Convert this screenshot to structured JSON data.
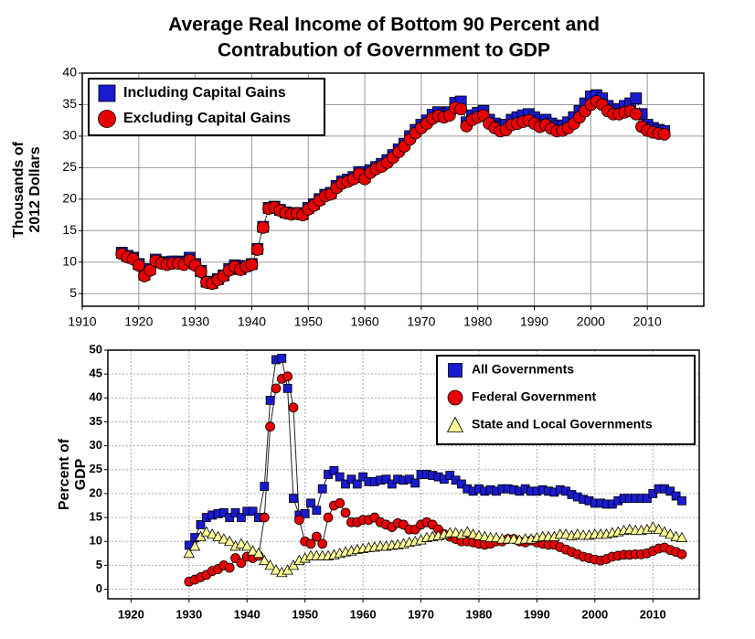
{
  "title": [
    "Average Real Income of Bottom 90 Percent and",
    "Contrabution of Government to GDP"
  ],
  "chart_data": [
    {
      "type": "scatter",
      "ylabel": [
        "Thousands of",
        "2012 Dollars"
      ],
      "legend": "upper left",
      "grid": true,
      "xlim": [
        1910,
        2020
      ],
      "xticks": [
        1910,
        1920,
        1930,
        1940,
        1950,
        1960,
        1970,
        1980,
        1990,
        2000,
        2010
      ],
      "ylim": [
        3,
        40
      ],
      "yticks": [
        5,
        10,
        15,
        20,
        25,
        30,
        35,
        40
      ],
      "x": [
        1917,
        1918,
        1919,
        1920,
        1921,
        1922,
        1923,
        1924,
        1925,
        1926,
        1927,
        1928,
        1929,
        1930,
        1931,
        1932,
        1933,
        1934,
        1935,
        1936,
        1937,
        1938,
        1939,
        1940,
        1941,
        1942,
        1943,
        1944,
        1945,
        1946,
        1947,
        1948,
        1949,
        1950,
        1951,
        1952,
        1953,
        1954,
        1955,
        1956,
        1957,
        1958,
        1959,
        1960,
        1961,
        1962,
        1963,
        1964,
        1965,
        1966,
        1967,
        1968,
        1969,
        1970,
        1971,
        1972,
        1973,
        1974,
        1975,
        1976,
        1977,
        1978,
        1979,
        1980,
        1981,
        1982,
        1983,
        1984,
        1985,
        1986,
        1987,
        1988,
        1989,
        1990,
        1991,
        1992,
        1993,
        1994,
        1995,
        1996,
        1997,
        1998,
        1999,
        2000,
        2001,
        2002,
        2003,
        2004,
        2005,
        2006,
        2007,
        2008,
        2009,
        2010,
        2011,
        2012,
        2013
      ],
      "series": [
        {
          "name": "Including Capital Gains",
          "color": "#1a1ad0",
          "marker": "square",
          "values": [
            11.5,
            11.0,
            10.7,
            9.7,
            8.0,
            8.9,
            10.4,
            10.0,
            9.9,
            10.1,
            10.1,
            10.0,
            10.7,
            9.7,
            8.6,
            6.9,
            6.7,
            7.3,
            7.9,
            8.9,
            9.5,
            8.9,
            9.4,
            9.7,
            12.1,
            15.6,
            18.6,
            18.8,
            18.3,
            17.9,
            17.7,
            17.8,
            17.6,
            18.6,
            19.2,
            20.0,
            20.7,
            21.0,
            22.1,
            22.8,
            23.1,
            23.5,
            24.3,
            23.5,
            24.6,
            25.1,
            25.6,
            26.2,
            27.0,
            27.9,
            28.8,
            30.0,
            31.0,
            31.8,
            32.5,
            33.4,
            33.8,
            33.5,
            33.8,
            35.3,
            35.5,
            32.2,
            33.3,
            33.7,
            34.0,
            32.6,
            32.0,
            31.5,
            31.8,
            32.6,
            33.0,
            33.3,
            33.5,
            33.0,
            32.5,
            32.6,
            32.0,
            31.6,
            31.7,
            32.2,
            33.0,
            34.0,
            35.2,
            36.3,
            36.5,
            36.0,
            34.8,
            34.2,
            34.3,
            34.8,
            35.2,
            36.0,
            33.5,
            31.8,
            31.3,
            31.0,
            30.8
          ]
        },
        {
          "name": "Excluding Capital Gains",
          "color": "#e80000",
          "marker": "circle",
          "values": [
            11.3,
            10.8,
            10.5,
            9.5,
            7.8,
            8.7,
            10.2,
            9.8,
            9.6,
            9.8,
            9.8,
            9.6,
            10.3,
            9.5,
            8.5,
            6.8,
            6.6,
            7.2,
            7.8,
            8.7,
            9.3,
            8.8,
            9.3,
            9.6,
            12.0,
            15.5,
            18.5,
            18.7,
            18.2,
            17.8,
            17.6,
            17.7,
            17.5,
            18.4,
            19.0,
            19.8,
            20.5,
            20.8,
            21.8,
            22.5,
            22.8,
            23.2,
            24.0,
            23.2,
            24.2,
            24.8,
            25.2,
            25.8,
            26.6,
            27.5,
            28.4,
            29.5,
            30.5,
            31.3,
            32.0,
            32.8,
            33.2,
            33.0,
            33.3,
            34.5,
            34.3,
            31.6,
            32.6,
            33.0,
            33.3,
            32.0,
            31.3,
            30.8,
            31.0,
            31.8,
            32.0,
            32.3,
            32.5,
            32.0,
            31.5,
            31.8,
            31.2,
            30.8,
            30.9,
            31.3,
            32.0,
            33.0,
            34.0,
            35.0,
            35.5,
            35.0,
            34.0,
            33.5,
            33.5,
            33.8,
            34.0,
            33.5,
            31.5,
            30.9,
            30.6,
            30.4,
            30.3
          ]
        }
      ]
    },
    {
      "type": "scatter",
      "ylabel": [
        "Percent of",
        "GDP"
      ],
      "legend": "upper right",
      "grid": true,
      "xlim": [
        1916,
        2018
      ],
      "xticks": [
        1920,
        1930,
        1940,
        1950,
        1960,
        1970,
        1980,
        1990,
        2000,
        2010
      ],
      "ylim": [
        -2,
        50
      ],
      "yticks": [
        0,
        5,
        10,
        15,
        20,
        25,
        30,
        35,
        40,
        45,
        50
      ],
      "x": [
        1930,
        1931,
        1932,
        1933,
        1934,
        1935,
        1936,
        1937,
        1938,
        1939,
        1940,
        1941,
        1942,
        1943,
        1944,
        1945,
        1946,
        1947,
        1948,
        1949,
        1950,
        1951,
        1952,
        1953,
        1954,
        1955,
        1956,
        1957,
        1958,
        1959,
        1960,
        1961,
        1962,
        1963,
        1964,
        1965,
        1966,
        1967,
        1968,
        1969,
        1970,
        1971,
        1972,
        1973,
        1974,
        1975,
        1976,
        1977,
        1978,
        1979,
        1980,
        1981,
        1982,
        1983,
        1984,
        1985,
        1986,
        1987,
        1988,
        1989,
        1990,
        1991,
        1992,
        1993,
        1994,
        1995,
        1996,
        1997,
        1998,
        1999,
        2000,
        2001,
        2002,
        2003,
        2004,
        2005,
        2006,
        2007,
        2008,
        2009,
        2010,
        2011,
        2012,
        2013,
        2014,
        2015
      ],
      "series": [
        {
          "name": "All Governments",
          "color": "#1a1ad0",
          "marker": "square",
          "values": [
            9.2,
            10.8,
            13.5,
            15.0,
            15.5,
            15.8,
            16.0,
            15.0,
            16.0,
            15.0,
            16.3,
            16.3,
            15.0,
            21.5,
            39.5,
            48.0,
            48.3,
            42.0,
            19.0,
            15.5,
            15.8,
            18.0,
            16.5,
            21.0,
            24.0,
            24.8,
            23.5,
            22.0,
            23.0,
            22.0,
            23.5,
            22.5,
            22.5,
            22.8,
            23.0,
            22.0,
            23.0,
            22.8,
            23.0,
            22.2,
            24.0,
            24.0,
            23.8,
            23.5,
            23.0,
            23.8,
            22.8,
            22.0,
            21.0,
            20.5,
            21.0,
            20.5,
            20.8,
            20.5,
            21.0,
            21.0,
            20.8,
            20.5,
            21.0,
            20.5,
            20.5,
            20.8,
            20.5,
            20.3,
            20.8,
            20.5,
            19.8,
            19.3,
            18.8,
            18.5,
            18.0,
            18.0,
            17.8,
            17.8,
            18.5,
            19.0,
            19.0,
            19.0,
            19.0,
            19.0,
            20.0,
            21.0,
            21.0,
            20.5,
            19.5,
            18.5
          ]
        },
        {
          "name": "Federal Government",
          "color": "#e80000",
          "marker": "circle",
          "values": [
            1.6,
            2.0,
            2.5,
            3.0,
            3.8,
            4.2,
            5.0,
            4.5,
            6.5,
            5.5,
            6.8,
            6.5,
            7.0,
            15.0,
            34.0,
            42.0,
            44.0,
            44.5,
            38.0,
            14.5,
            10.0,
            9.5,
            11.0,
            9.5,
            15.0,
            17.5,
            18.0,
            16.0,
            14.0,
            14.0,
            14.5,
            14.5,
            15.0,
            14.0,
            13.5,
            13.0,
            13.8,
            13.5,
            12.5,
            12.5,
            13.5,
            14.0,
            13.5,
            12.5,
            11.5,
            11.0,
            10.5,
            10.0,
            10.0,
            9.8,
            9.5,
            9.3,
            9.5,
            10.0,
            10.0,
            10.5,
            10.5,
            10.0,
            9.8,
            10.2,
            9.8,
            9.5,
            9.3,
            9.3,
            8.8,
            8.3,
            7.8,
            7.3,
            6.8,
            6.5,
            6.2,
            6.0,
            6.3,
            6.8,
            7.0,
            7.2,
            7.2,
            7.3,
            7.3,
            7.5,
            8.0,
            8.5,
            8.7,
            8.2,
            7.8,
            7.3
          ]
        },
        {
          "name": "State and Local Governments",
          "color": "#ffff99",
          "marker": "triangle",
          "values": [
            7.5,
            9.0,
            11.0,
            12.0,
            11.5,
            11.0,
            10.5,
            10.0,
            9.0,
            9.5,
            9.0,
            8.0,
            7.5,
            6.0,
            5.0,
            4.0,
            3.5,
            4.0,
            5.0,
            6.0,
            6.5,
            7.0,
            7.0,
            7.0,
            7.0,
            7.2,
            7.5,
            7.8,
            8.0,
            8.3,
            8.5,
            8.7,
            8.8,
            9.0,
            9.0,
            9.2,
            9.3,
            9.5,
            9.8,
            10.0,
            10.3,
            10.8,
            11.0,
            11.2,
            11.5,
            11.8,
            11.8,
            11.5,
            12.0,
            11.5,
            11.2,
            11.0,
            10.8,
            10.8,
            10.5,
            10.5,
            10.5,
            10.3,
            10.5,
            10.5,
            10.8,
            11.0,
            11.0,
            11.0,
            11.5,
            11.5,
            11.2,
            11.5,
            11.3,
            11.3,
            11.5,
            11.5,
            11.5,
            11.8,
            12.0,
            12.3,
            12.5,
            12.3,
            12.3,
            12.5,
            13.0,
            12.5,
            12.0,
            11.5,
            11.0,
            10.8
          ]
        }
      ]
    }
  ]
}
